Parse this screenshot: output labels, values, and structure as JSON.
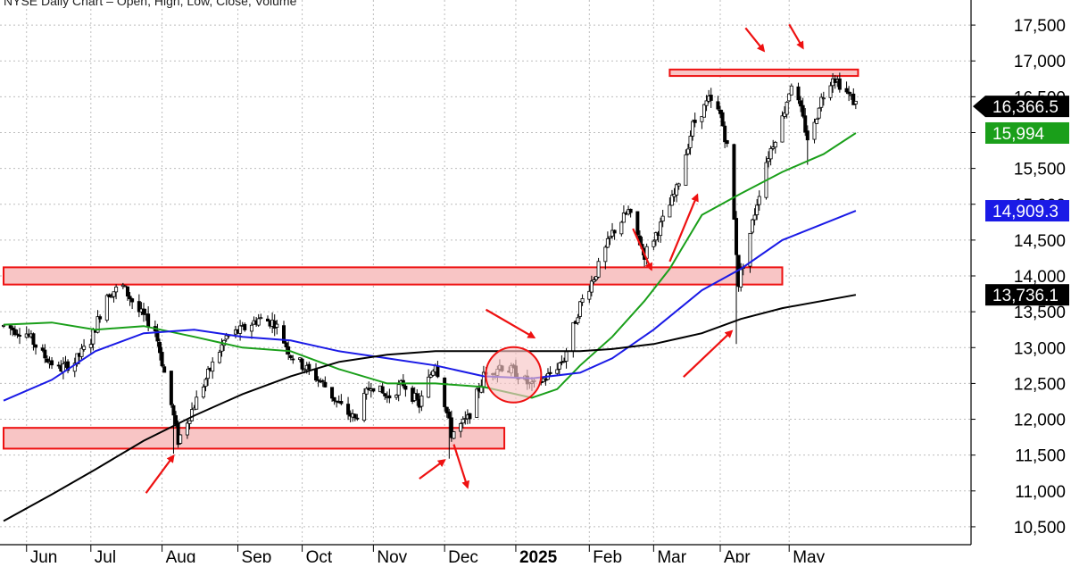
{
  "header_text": "NYSE Daily Chart – Open, High, Low, Close, Volume",
  "chart_data": {
    "type": "candlestick",
    "title": "",
    "xlabel": "",
    "ylabel": "",
    "ylim": [
      10250,
      17850
    ],
    "grid": true,
    "legend": "none",
    "months": [
      {
        "label": "Jun",
        "date": "2024-06-03"
      },
      {
        "label": "Jul",
        "date": "2024-07-01"
      },
      {
        "label": "Aug",
        "date": "2024-08-01"
      },
      {
        "label": "Sep",
        "date": "2024-09-03"
      },
      {
        "label": "Oct",
        "date": "2024-10-01"
      },
      {
        "label": "Nov",
        "date": "2024-11-01"
      },
      {
        "label": "Dec",
        "date": "2024-12-02"
      },
      {
        "label": "2025",
        "date": "2025-01-02",
        "bold": true
      },
      {
        "label": "Feb",
        "date": "2025-02-03"
      },
      {
        "label": "Mar",
        "date": "2025-03-03"
      },
      {
        "label": "Apr",
        "date": "2025-04-01"
      },
      {
        "label": "May",
        "date": "2025-05-01"
      }
    ],
    "y_ticks": [
      "10,500",
      "11,000",
      "11,500",
      "12,000",
      "12,500",
      "13,000",
      "13,500",
      "14,000",
      "14,500",
      "15,000",
      "15,500",
      "16,000",
      "16,500",
      "17,000",
      "17,500"
    ],
    "y_tick_values": [
      10500,
      11000,
      11500,
      12000,
      12500,
      13000,
      13500,
      14000,
      14500,
      15000,
      15500,
      16000,
      16500,
      17000,
      17500
    ],
    "price_path": [
      [
        "2024-05-24",
        13300
      ],
      [
        "2024-06-03",
        13200
      ],
      [
        "2024-06-10",
        12900
      ],
      [
        "2024-06-17",
        12700
      ],
      [
        "2024-06-24",
        12800
      ],
      [
        "2024-07-01",
        13100
      ],
      [
        "2024-07-08",
        13750
      ],
      [
        "2024-07-15",
        13850
      ],
      [
        "2024-07-22",
        13500
      ],
      [
        "2024-07-29",
        13250
      ],
      [
        "2024-08-05",
        12200
      ],
      [
        "2024-08-08",
        11700
      ],
      [
        "2024-08-15",
        12200
      ],
      [
        "2024-08-22",
        12700
      ],
      [
        "2024-08-29",
        13150
      ],
      [
        "2024-09-05",
        13250
      ],
      [
        "2024-09-12",
        13400
      ],
      [
        "2024-09-19",
        13350
      ],
      [
        "2024-09-26",
        12900
      ],
      [
        "2024-10-03",
        12700
      ],
      [
        "2024-10-10",
        12500
      ],
      [
        "2024-10-17",
        12200
      ],
      [
        "2024-10-24",
        12000
      ],
      [
        "2024-10-31",
        12500
      ],
      [
        "2024-11-07",
        12300
      ],
      [
        "2024-11-14",
        12500
      ],
      [
        "2024-11-21",
        12200
      ],
      [
        "2024-11-28",
        12800
      ],
      [
        "2024-12-05",
        11800
      ],
      [
        "2024-12-12",
        12000
      ],
      [
        "2024-12-19",
        12600
      ],
      [
        "2024-12-26",
        12750
      ],
      [
        "2025-01-02",
        12650
      ],
      [
        "2025-01-09",
        12450
      ],
      [
        "2025-01-16",
        12600
      ],
      [
        "2025-01-23",
        12850
      ],
      [
        "2025-01-30",
        13600
      ],
      [
        "2025-02-06",
        14050
      ],
      [
        "2025-02-13",
        14600
      ],
      [
        "2025-02-20",
        14900
      ],
      [
        "2025-02-27",
        14300
      ],
      [
        "2025-03-06",
        14700
      ],
      [
        "2025-03-13",
        15200
      ],
      [
        "2025-03-20",
        16100
      ],
      [
        "2025-03-27",
        16450
      ],
      [
        "2025-04-01",
        16250
      ],
      [
        "2025-04-05",
        15650
      ],
      [
        "2025-04-09",
        13900
      ],
      [
        "2025-04-14",
        14600
      ],
      [
        "2025-04-21",
        15600
      ],
      [
        "2025-04-28",
        16200
      ],
      [
        "2025-05-02",
        16700
      ],
      [
        "2025-05-06",
        16300
      ],
      [
        "2025-05-10",
        15800
      ],
      [
        "2025-05-14",
        16400
      ],
      [
        "2025-05-20",
        16800
      ],
      [
        "2025-05-25",
        16600
      ],
      [
        "2025-05-30",
        16400
      ]
    ],
    "lows": [
      [
        "2024-08-06",
        11520
      ],
      [
        "2024-12-04",
        11450
      ],
      [
        "2025-04-08",
        13050
      ],
      [
        "2025-05-09",
        15550
      ]
    ],
    "series": [
      {
        "color": "#1a9f1a",
        "values": [
          [
            "2024-05-24",
            13320
          ],
          [
            "2024-06-14",
            13350
          ],
          [
            "2024-07-03",
            13250
          ],
          [
            "2024-07-24",
            13300
          ],
          [
            "2024-08-15",
            13150
          ],
          [
            "2024-09-05",
            13000
          ],
          [
            "2024-09-26",
            12950
          ],
          [
            "2024-10-17",
            12700
          ],
          [
            "2024-11-07",
            12500
          ],
          [
            "2024-11-28",
            12500
          ],
          [
            "2024-12-19",
            12450
          ],
          [
            "2025-01-09",
            12300
          ],
          [
            "2025-01-20",
            12420
          ],
          [
            "2025-01-30",
            12750
          ],
          [
            "2025-02-13",
            13150
          ],
          [
            "2025-02-27",
            13650
          ],
          [
            "2025-03-10",
            14100
          ],
          [
            "2025-03-24",
            14850
          ],
          [
            "2025-04-10",
            15150
          ],
          [
            "2025-04-28",
            15450
          ],
          [
            "2025-05-16",
            15700
          ],
          [
            "2025-05-30",
            15994
          ]
        ]
      },
      {
        "color": "#1a1ae6",
        "values": [
          [
            "2024-05-24",
            12260
          ],
          [
            "2024-06-14",
            12550
          ],
          [
            "2024-07-03",
            12950
          ],
          [
            "2024-07-24",
            13200
          ],
          [
            "2024-08-15",
            13250
          ],
          [
            "2024-09-05",
            13150
          ],
          [
            "2024-09-26",
            13100
          ],
          [
            "2024-10-17",
            12950
          ],
          [
            "2024-11-07",
            12850
          ],
          [
            "2024-11-28",
            12750
          ],
          [
            "2024-12-19",
            12600
          ],
          [
            "2025-01-09",
            12570
          ],
          [
            "2025-01-30",
            12650
          ],
          [
            "2025-02-13",
            12850
          ],
          [
            "2025-03-03",
            13250
          ],
          [
            "2025-03-24",
            13800
          ],
          [
            "2025-04-10",
            14100
          ],
          [
            "2025-04-28",
            14500
          ],
          [
            "2025-05-30",
            14909
          ]
        ]
      },
      {
        "color": "#000000",
        "values": [
          [
            "2024-05-24",
            10580
          ],
          [
            "2024-06-14",
            10950
          ],
          [
            "2024-07-03",
            11300
          ],
          [
            "2024-07-24",
            11700
          ],
          [
            "2024-08-15",
            12050
          ],
          [
            "2024-09-05",
            12350
          ],
          [
            "2024-09-26",
            12600
          ],
          [
            "2024-10-17",
            12800
          ],
          [
            "2024-11-07",
            12900
          ],
          [
            "2024-11-28",
            12950
          ],
          [
            "2024-12-19",
            12950
          ],
          [
            "2025-01-09",
            12950
          ],
          [
            "2025-01-30",
            12950
          ],
          [
            "2025-02-13",
            12980
          ],
          [
            "2025-03-03",
            13050
          ],
          [
            "2025-03-24",
            13200
          ],
          [
            "2025-04-10",
            13400
          ],
          [
            "2025-04-28",
            13550
          ],
          [
            "2025-05-30",
            13736
          ]
        ]
      }
    ],
    "price_labels": [
      {
        "text": "16,366.5",
        "value": 16366.5,
        "bg": "#000000",
        "fg": "#ffffff",
        "pointer": true
      },
      {
        "text": "15,994",
        "value": 15994,
        "bg": "#1a9f1a",
        "fg": "#ffffff",
        "pointer": false
      },
      {
        "text": "14,909.3",
        "value": 14909.3,
        "bg": "#1a1ae6",
        "fg": "#ffffff",
        "pointer": false
      },
      {
        "text": "13,736.1",
        "value": 13736.1,
        "bg": "#000000",
        "fg": "#ffffff",
        "pointer": false
      }
    ],
    "zones": [
      {
        "name": "support-zone-upper",
        "from": "2024-05-24",
        "to": "2025-04-28",
        "low": 13880,
        "high": 14120
      },
      {
        "name": "support-zone-lower",
        "from": "2024-05-24",
        "to": "2024-12-28",
        "low": 11590,
        "high": 11880
      },
      {
        "name": "resistance-zone-top",
        "from": "2025-03-10",
        "to": "2025-05-31",
        "low": 16790,
        "high": 16880
      }
    ],
    "circle": {
      "date": "2025-01-01",
      "value": 12620
    },
    "arrows": [
      {
        "name": "arrow-aug-low",
        "from": [
          "2024-07-25",
          10970
        ],
        "to": [
          "2024-08-06",
          11490
        ]
      },
      {
        "name": "arrow-nov-low",
        "from": [
          "2024-11-21",
          11170
        ],
        "to": [
          "2024-12-02",
          11430
        ]
      },
      {
        "name": "arrow-dec-down",
        "from": [
          "2024-12-06",
          11650
        ],
        "to": [
          "2024-12-12",
          11050
        ]
      },
      {
        "name": "arrow-breakout",
        "from": [
          "2024-12-20",
          13530
        ],
        "to": [
          "2025-01-10",
          13140
        ]
      },
      {
        "name": "arrow-feb-down",
        "from": [
          "2025-02-22",
          14660
        ],
        "to": [
          "2025-03-02",
          14090
        ]
      },
      {
        "name": "arrow-mar-up",
        "from": [
          "2025-03-10",
          14200
        ],
        "to": [
          "2025-03-22",
          15130
        ]
      },
      {
        "name": "arrow-apr-up",
        "from": [
          "2025-03-16",
          12590
        ],
        "to": [
          "2025-04-06",
          13230
        ]
      },
      {
        "name": "arrow-top-1",
        "from": [
          "2025-04-12",
          17460
        ],
        "to": [
          "2025-04-20",
          17140
        ]
      },
      {
        "name": "arrow-top-2",
        "from": [
          "2025-05-01",
          17510
        ],
        "to": [
          "2025-05-07",
          17180
        ]
      }
    ],
    "colors": {
      "zone_fill": "#f8c5c5",
      "zone_stroke": "#ee1111",
      "arrow": "#ee1111",
      "grid": "#bdbdbd"
    }
  }
}
